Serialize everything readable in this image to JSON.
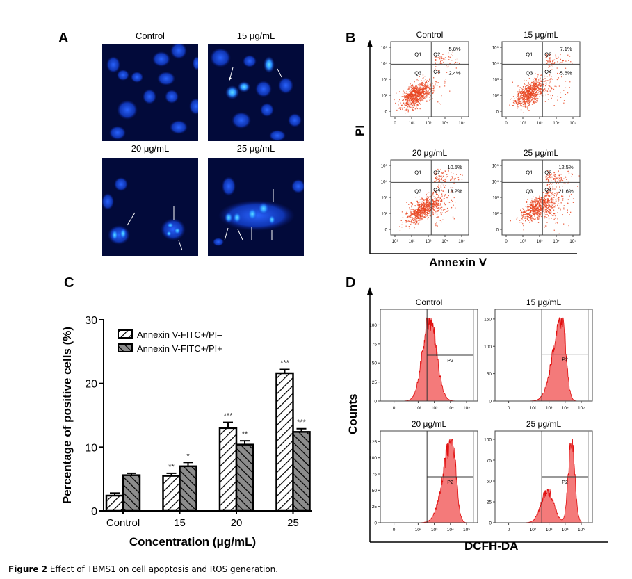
{
  "caption": {
    "label": "Figure 2",
    "text": " Effect of TBMS1 on cell apoptosis and ROS generation."
  },
  "panels": {
    "A": {
      "letter": "A",
      "images": [
        {
          "title": "Control",
          "arrows": 0
        },
        {
          "title": "15 μg/mL",
          "arrows": 2
        },
        {
          "title": "20 μg/mL",
          "arrows": 3
        },
        {
          "title": "25 μg/mL",
          "arrows": 5
        }
      ]
    },
    "B": {
      "letter": "B",
      "y_axis_title": "PI",
      "x_axis_title": "Annexin V",
      "y_ticks": [
        "0",
        "10²",
        "10³",
        "10⁴",
        "10⁵"
      ],
      "x_ticks_default": [
        "0",
        "10²",
        "10³",
        "10⁴",
        "10⁵"
      ],
      "x_ticks_20": [
        "10¹",
        "10²",
        "10³",
        "10⁴",
        "10⁵"
      ],
      "quadrant_labels": [
        "Q1",
        "Q2",
        "Q3",
        "Q4"
      ],
      "plots": [
        {
          "title": "Control",
          "q2": "5.8%",
          "q4": "2.4%"
        },
        {
          "title": "15 μg/mL",
          "q2": "7.1%",
          "q4": "5.6%"
        },
        {
          "title": "20 μg/mL",
          "q2": "10.5%",
          "q4": "13.2%"
        },
        {
          "title": "25 μg/mL",
          "q2": "12.5%",
          "q4": "21.6%"
        }
      ]
    },
    "D": {
      "letter": "D",
      "y_axis_title": "Counts",
      "x_axis_title": "DCFH-DA",
      "x_ticks": [
        "0",
        "10²",
        "10³",
        "10⁴",
        "10⁵"
      ],
      "gate_label": "P2",
      "plots": [
        {
          "title": "Control",
          "y_ticks": [
            "0",
            "25",
            "50",
            "75",
            "100"
          ],
          "ymax": 115,
          "peak_log": 2.7
        },
        {
          "title": "15 μg/mL",
          "y_ticks": [
            "0",
            "50",
            "100",
            "150"
          ],
          "ymax": 160,
          "peak_log": 3.8
        },
        {
          "title": "20 μg/mL",
          "y_ticks": [
            "0",
            "25",
            "50",
            "75",
            "100",
            "125"
          ],
          "ymax": 135,
          "peak_log": 4.1
        },
        {
          "title": "25 μg/mL",
          "y_ticks": [
            "0",
            "25",
            "50",
            "75",
            "100"
          ],
          "ymax": 105,
          "peak_log": 4.4
        }
      ]
    },
    "C": {
      "letter": "C"
    }
  },
  "chart_data": {
    "type": "bar",
    "title": "",
    "xlabel": "Concentration (μg/mL)",
    "ylabel": "Percentage of positive cells (%)",
    "ylim": [
      0,
      30
    ],
    "yticks": [
      0,
      10,
      20,
      30
    ],
    "categories": [
      "Control",
      "15",
      "20",
      "25"
    ],
    "series": [
      {
        "name": "Annexin V-FITC+/PI–",
        "values": [
          2.4,
          5.5,
          13.0,
          21.6
        ],
        "errors": [
          0.4,
          0.4,
          0.9,
          0.6
        ],
        "significance": [
          "",
          "**",
          "***",
          "***"
        ]
      },
      {
        "name": "Annexin V-FITC+/PI+",
        "values": [
          5.6,
          7.0,
          10.4,
          12.4
        ],
        "errors": [
          0.3,
          0.6,
          0.6,
          0.5
        ],
        "significance": [
          "",
          "*",
          "**",
          "***"
        ]
      }
    ],
    "legend_position": "top-left",
    "grid": false
  }
}
